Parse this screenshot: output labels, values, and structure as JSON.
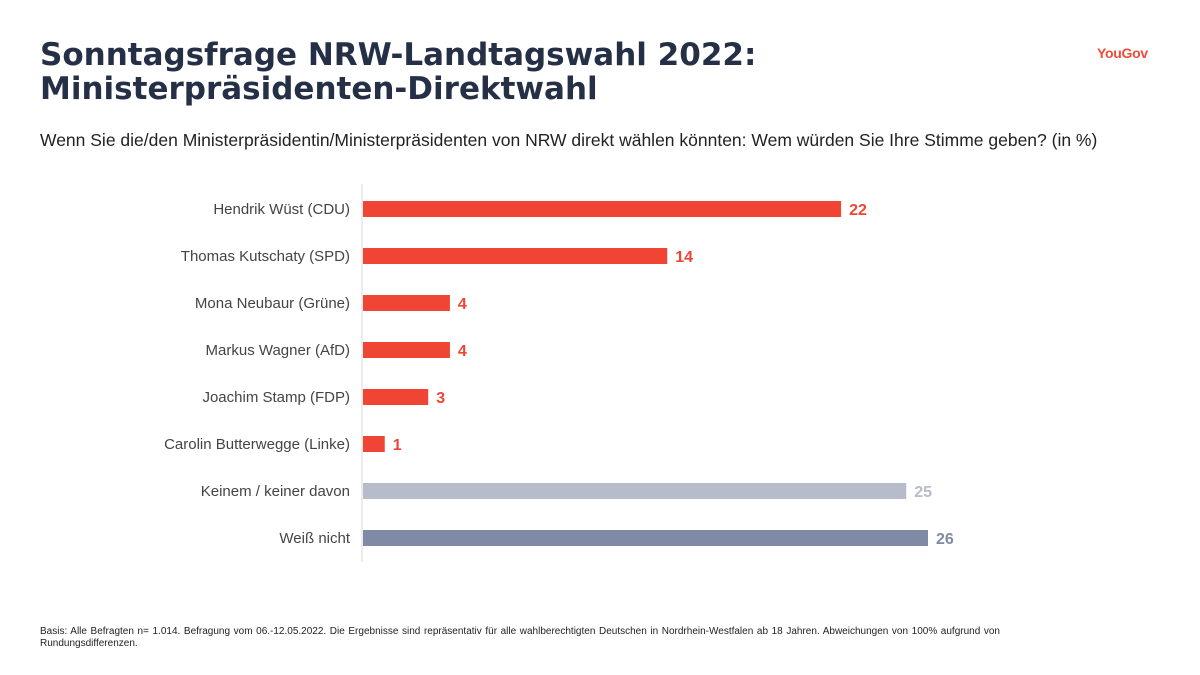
{
  "header": {
    "title": "Sonntagsfrage NRW-Landtagswahl 2022: Ministerpräsidenten-Direktwahl",
    "subtitle": "Wenn Sie die/den Ministerpräsidentin/Ministerpräsidenten von NRW direkt wählen könnten: Wem würden Sie Ihre Stimme geben? (in %)",
    "logo": "YouGov"
  },
  "chart_data": {
    "type": "bar",
    "orientation": "horizontal",
    "categories": [
      "Hendrik Wüst (CDU)",
      "Thomas Kutschaty (SPD)",
      "Mona Neubaur (Grüne)",
      "Markus Wagner (AfD)",
      "Joachim Stamp (FDP)",
      "Carolin Butterwegge (Linke)",
      "Keinem / keiner davon",
      "Weiß nicht"
    ],
    "values": [
      22,
      14,
      4,
      4,
      3,
      1,
      25,
      26
    ],
    "colors": [
      "#f04434",
      "#f04434",
      "#f04434",
      "#f04434",
      "#f04434",
      "#f04434",
      "#b7bcca",
      "#7f8aa4"
    ],
    "xlim": [
      0,
      26
    ],
    "grid": false,
    "data_labels": true
  },
  "footnote": "Basis: Alle Befragten n= 1.014. Befragung vom 06.-12.05.2022. Die Ergebnisse sind repräsentativ für alle wahlberechtigten Deutschen in Nordrhein-Westfalen ab 18 Jahren. Abweichungen von 100% aufgrund von Rundungsdifferenzen."
}
